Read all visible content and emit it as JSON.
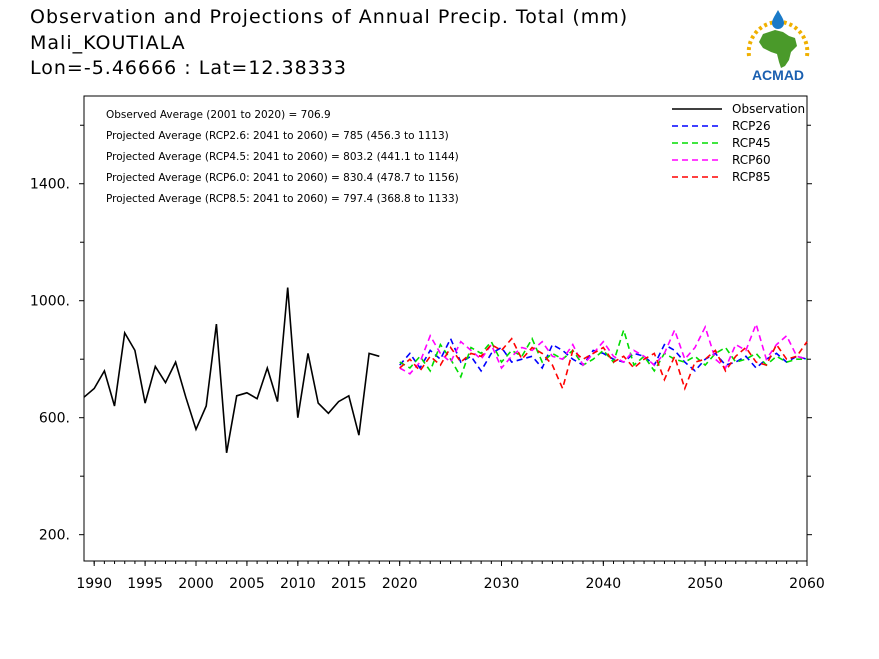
{
  "header": {
    "title_line1": "Observation and Projections of Annual Precip. Total (mm)",
    "title_line2": "Mali_KOUTIALA",
    "title_line3": "Lon=-5.46666 : Lat=12.38333"
  },
  "logo": {
    "text": "ACMAD",
    "colors": {
      "africa": "#4a9a2a",
      "drop": "#1a7ac8",
      "text": "#1a5fb0",
      "sun": "#f0b000"
    }
  },
  "chart_data": {
    "type": "line",
    "xlim": [
      1989,
      2060
    ],
    "ylim": [
      110,
      1700
    ],
    "x_ticks": [
      {
        "value": 1990,
        "label": "1990"
      },
      {
        "value": 1995,
        "label": "1995"
      },
      {
        "value": 2000,
        "label": "2000"
      },
      {
        "value": 2005,
        "label": "2005"
      },
      {
        "value": 2010,
        "label": "2010"
      },
      {
        "value": 2015,
        "label": "2015"
      },
      {
        "value": 2020,
        "label": "2020"
      },
      {
        "value": 2030,
        "label": "2030"
      },
      {
        "value": 2040,
        "label": "2040"
      },
      {
        "value": 2050,
        "label": "2050"
      },
      {
        "value": 2060,
        "label": "2060"
      }
    ],
    "y_ticks": [
      {
        "value": 200,
        "label": "200."
      },
      {
        "value": 600,
        "label": "600."
      },
      {
        "value": 1000,
        "label": "1000."
      },
      {
        "value": 1400,
        "label": "1400."
      }
    ],
    "y_minor": [
      400,
      800,
      1200,
      1600
    ],
    "stats": [
      "Observed Average (2001 to 2020) = 706.9",
      "Projected Average (RCP2.6: 2041 to 2060) = 785 (456.3 to 1113)",
      "Projected Average (RCP4.5: 2041 to 2060) = 803.2 (441.1 to 1144)",
      "Projected Average (RCP6.0: 2041 to 2060) = 830.4 (478.7 to 1156)",
      "Projected Average (RCP8.5: 2041 to 2060) = 797.4 (368.8 to 1133)"
    ],
    "legend_position": "top-right",
    "series": [
      {
        "name": "Observation",
        "color": "#000000",
        "dashed": false,
        "x_start": 1989,
        "values": [
          670,
          700,
          760,
          640,
          890,
          830,
          650,
          775,
          720,
          790,
          670,
          560,
          640,
          920,
          480,
          675,
          685,
          665,
          770,
          655,
          1045,
          600,
          820,
          650,
          615,
          655,
          675,
          540,
          820,
          810
        ]
      },
      {
        "name": "RCP26",
        "color": "#0000ff",
        "dashed": true,
        "x_start": 2020,
        "values": [
          780,
          820,
          770,
          830,
          800,
          870,
          790,
          810,
          760,
          820,
          840,
          790,
          800,
          810,
          770,
          850,
          830,
          800,
          780,
          830,
          820,
          800,
          790,
          820,
          810,
          780,
          850,
          830,
          790,
          760,
          800,
          820,
          780,
          790,
          810,
          770,
          800,
          820,
          790,
          810,
          800
        ]
      },
      {
        "name": "RCP45",
        "color": "#00dd00",
        "dashed": true,
        "x_start": 2020,
        "values": [
          790,
          770,
          810,
          760,
          850,
          800,
          740,
          840,
          820,
          860,
          790,
          830,
          810,
          870,
          790,
          820,
          800,
          830,
          780,
          800,
          830,
          790,
          900,
          780,
          810,
          760,
          820,
          800,
          790,
          810,
          780,
          820,
          840,
          790,
          800,
          820,
          780,
          810,
          790,
          800,
          800
        ]
      },
      {
        "name": "RCP60",
        "color": "#ff00ff",
        "dashed": true,
        "x_start": 2020,
        "values": [
          770,
          750,
          790,
          880,
          820,
          790,
          860,
          830,
          800,
          850,
          770,
          810,
          840,
          830,
          860,
          810,
          800,
          850,
          780,
          820,
          860,
          810,
          790,
          830,
          810,
          780,
          820,
          900,
          800,
          840,
          910,
          800,
          770,
          850,
          830,
          920,
          800,
          850,
          880,
          810,
          800
        ]
      },
      {
        "name": "RCP85",
        "color": "#ff0000",
        "dashed": true,
        "x_start": 2020,
        "values": [
          770,
          800,
          760,
          810,
          780,
          840,
          790,
          820,
          810,
          850,
          830,
          870,
          800,
          840,
          820,
          780,
          700,
          830,
          800,
          820,
          840,
          790,
          810,
          770,
          800,
          820,
          730,
          810,
          700,
          790,
          800,
          830,
          760,
          810,
          840,
          790,
          780,
          850,
          800,
          810,
          860
        ]
      }
    ]
  }
}
